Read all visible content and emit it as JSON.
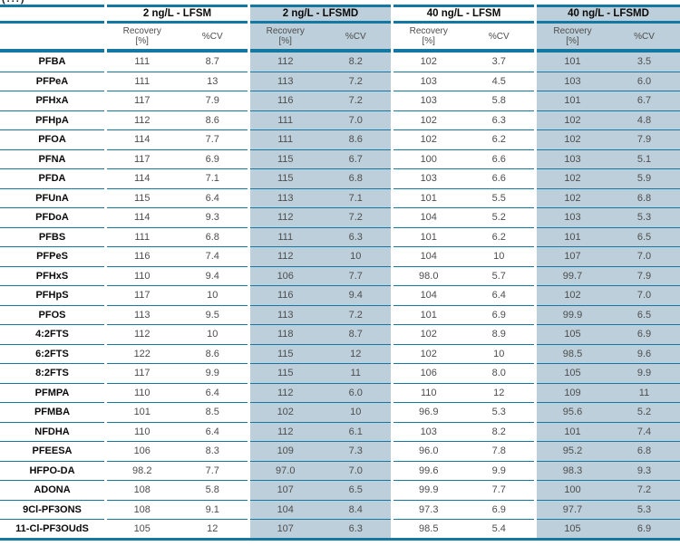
{
  "caption_fragment": "(...)",
  "colors": {
    "accent_teal": "#1478a2",
    "shaded_column": "#bdcfda",
    "value_text": "#4d4d4d",
    "header_text": "#0a0a0a"
  },
  "table": {
    "groups": [
      {
        "label": "2 ng/L - LFSM",
        "shaded": false
      },
      {
        "label": "2 ng/L - LFSMD",
        "shaded": true
      },
      {
        "label": "40 ng/L - LFSM",
        "shaded": false
      },
      {
        "label": "40 ng/L - LFSMD",
        "shaded": true
      }
    ],
    "subheaders": {
      "recovery": "Recovery",
      "recovery_unit": "[%]",
      "cv": "%CV"
    },
    "rows": [
      {
        "compound": "PFBA",
        "values": [
          "111",
          "8.7",
          "112",
          "8.2",
          "102",
          "3.7",
          "101",
          "3.5"
        ]
      },
      {
        "compound": "PFPeA",
        "values": [
          "111",
          "13",
          "113",
          "7.2",
          "103",
          "4.5",
          "103",
          "6.0"
        ]
      },
      {
        "compound": "PFHxA",
        "values": [
          "117",
          "7.9",
          "116",
          "7.2",
          "103",
          "5.8",
          "101",
          "6.7"
        ]
      },
      {
        "compound": "PFHpA",
        "values": [
          "112",
          "8.6",
          "111",
          "7.0",
          "102",
          "6.3",
          "102",
          "4.8"
        ]
      },
      {
        "compound": "PFOA",
        "values": [
          "114",
          "7.7",
          "111",
          "8.6",
          "102",
          "6.2",
          "102",
          "7.9"
        ]
      },
      {
        "compound": "PFNA",
        "values": [
          "117",
          "6.9",
          "115",
          "6.7",
          "100",
          "6.6",
          "103",
          "5.1"
        ]
      },
      {
        "compound": "PFDA",
        "values": [
          "114",
          "7.1",
          "115",
          "6.8",
          "103",
          "6.6",
          "102",
          "5.9"
        ]
      },
      {
        "compound": "PFUnA",
        "values": [
          "115",
          "6.4",
          "113",
          "7.1",
          "101",
          "5.5",
          "102",
          "6.8"
        ]
      },
      {
        "compound": "PFDoA",
        "values": [
          "114",
          "9.3",
          "112",
          "7.2",
          "104",
          "5.2",
          "103",
          "5.3"
        ]
      },
      {
        "compound": "PFBS",
        "values": [
          "111",
          "6.8",
          "111",
          "6.3",
          "101",
          "6.2",
          "101",
          "6.5"
        ]
      },
      {
        "compound": "PFPeS",
        "values": [
          "116",
          "7.4",
          "112",
          "10",
          "104",
          "10",
          "107",
          "7.0"
        ]
      },
      {
        "compound": "PFHxS",
        "values": [
          "110",
          "9.4",
          "106",
          "7.7",
          "98.0",
          "5.7",
          "99.7",
          "7.9"
        ]
      },
      {
        "compound": "PFHpS",
        "values": [
          "117",
          "10",
          "116",
          "9.4",
          "104",
          "6.4",
          "102",
          "7.0"
        ]
      },
      {
        "compound": "PFOS",
        "values": [
          "113",
          "9.5",
          "113",
          "7.2",
          "101",
          "6.9",
          "99.9",
          "6.5"
        ]
      },
      {
        "compound": "4:2FTS",
        "values": [
          "112",
          "10",
          "118",
          "8.7",
          "102",
          "8.9",
          "105",
          "6.9"
        ]
      },
      {
        "compound": "6:2FTS",
        "values": [
          "122",
          "8.6",
          "115",
          "12",
          "102",
          "10",
          "98.5",
          "9.6"
        ]
      },
      {
        "compound": "8:2FTS",
        "values": [
          "117",
          "9.9",
          "115",
          "11",
          "106",
          "8.0",
          "105",
          "9.9"
        ]
      },
      {
        "compound": "PFMPA",
        "values": [
          "110",
          "6.4",
          "112",
          "6.0",
          "110",
          "12",
          "109",
          "11"
        ]
      },
      {
        "compound": "PFMBA",
        "values": [
          "101",
          "8.5",
          "102",
          "10",
          "96.9",
          "5.3",
          "95.6",
          "5.2"
        ]
      },
      {
        "compound": "NFDHA",
        "values": [
          "110",
          "6.4",
          "112",
          "6.1",
          "103",
          "8.2",
          "101",
          "7.4"
        ]
      },
      {
        "compound": "PFEESA",
        "values": [
          "106",
          "8.3",
          "109",
          "7.3",
          "96.0",
          "7.8",
          "95.2",
          "6.8"
        ]
      },
      {
        "compound": "HFPO-DA",
        "values": [
          "98.2",
          "7.7",
          "97.0",
          "7.0",
          "99.6",
          "9.9",
          "98.3",
          "9.3"
        ]
      },
      {
        "compound": "ADONA",
        "values": [
          "108",
          "5.8",
          "107",
          "6.5",
          "99.9",
          "7.7",
          "100",
          "7.2"
        ]
      },
      {
        "compound": "9Cl-PF3ONS",
        "values": [
          "108",
          "9.1",
          "104",
          "8.4",
          "97.3",
          "6.9",
          "97.7",
          "5.3"
        ]
      },
      {
        "compound": "11-Cl-PF3OUdS",
        "values": [
          "105",
          "12",
          "107",
          "6.3",
          "98.5",
          "5.4",
          "105",
          "6.9"
        ]
      }
    ]
  }
}
